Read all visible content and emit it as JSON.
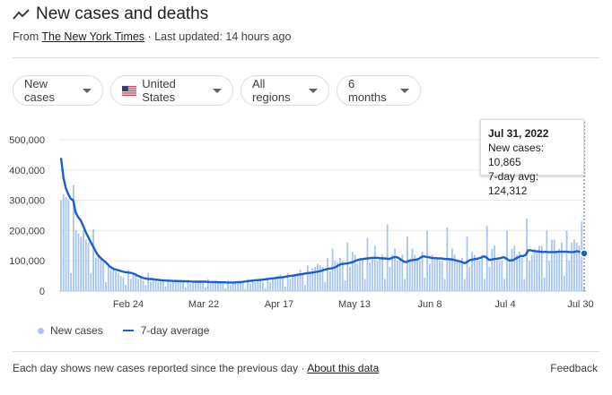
{
  "header": {
    "title": "New cases and deaths",
    "icon": "trending-icon",
    "source_prefix": "From",
    "source_name": "The New York Times",
    "separator": "·",
    "updated": "Last updated: 14 hours ago"
  },
  "filters": {
    "metric": "New cases",
    "country": "United States",
    "region": "All regions",
    "range": "6 months"
  },
  "colors": {
    "bar": "#a7c5f2",
    "line": "#1a5fd0",
    "text": "#3c4043",
    "divider": "#dadce0",
    "flag_red": "#b22234",
    "flag_blue": "#3c3b6e"
  },
  "tooltip": {
    "date": "Jul 31, 2022",
    "new_cases": "New cases: 10,865",
    "avg": "7-day avg: 124,312"
  },
  "legend": {
    "bars": "New cases",
    "line": "7-day average"
  },
  "footer": {
    "note": "Each day shows new cases reported since the previous day",
    "separator": "·",
    "about": "About this data",
    "feedback": "Feedback"
  },
  "chart_data": {
    "type": "bar",
    "title": "",
    "xlabel": "",
    "ylabel": "",
    "ylim": [
      0,
      500000
    ],
    "yticks": [
      "500,000",
      "400,000",
      "300,000",
      "200,000",
      "100,000",
      "0"
    ],
    "xticks": [
      "Feb 24",
      "Mar 22",
      "Apr 17",
      "May 13",
      "Jun 8",
      "Jul 4",
      "Jul 30"
    ],
    "x_range": [
      "Jan 31, 2022",
      "Jul 31, 2022"
    ],
    "grid": true,
    "series": [
      {
        "name": "New cases",
        "kind": "bars",
        "values": [
          300000,
          320000,
          310000,
          300000,
          60000,
          350000,
          200000,
          190000,
          180000,
          200000,
          170000,
          160000,
          60000,
          205000,
          110000,
          120000,
          110000,
          95000,
          30000,
          90000,
          70000,
          80000,
          65000,
          60000,
          50000,
          45000,
          20000,
          70000,
          40000,
          55000,
          60000,
          40000,
          50000,
          35000,
          20000,
          60000,
          30000,
          35000,
          40000,
          30000,
          35000,
          35000,
          15000,
          40000,
          28000,
          35000,
          38000,
          30000,
          35000,
          30000,
          12000,
          38000,
          25000,
          30000,
          32000,
          28000,
          35000,
          30000,
          12000,
          40000,
          25000,
          30000,
          35000,
          28000,
          32000,
          30000,
          10000,
          35000,
          20000,
          25000,
          30000,
          25000,
          28000,
          30000,
          8000,
          40000,
          25000,
          35000,
          30000,
          35000,
          40000,
          30000,
          10000,
          45000,
          30000,
          45000,
          40000,
          50000,
          55000,
          45000,
          15000,
          60000,
          40000,
          50000,
          55000,
          60000,
          70000,
          60000,
          20000,
          85000,
          60000,
          75000,
          80000,
          90000,
          85000,
          80000,
          30000,
          110000,
          65000,
          140000,
          100000,
          95000,
          110000,
          100000,
          35000,
          160000,
          80000,
          130000,
          120000,
          90000,
          100000,
          110000,
          40000,
          175000,
          95000,
          110000,
          150000,
          100000,
          110000,
          120000,
          40000,
          220000,
          80000,
          120000,
          140000,
          100000,
          110000,
          120000,
          40000,
          180000,
          100000,
          140000,
          120000,
          110000,
          100000,
          130000,
          45000,
          200000,
          90000,
          120000,
          110000,
          110000,
          100000,
          100000,
          40000,
          210000,
          110000,
          140000,
          120000,
          100000,
          100000,
          110000,
          40000,
          180000,
          80000,
          130000,
          120000,
          110000,
          100000,
          120000,
          40000,
          215000,
          80000,
          140000,
          150000,
          110000,
          100000,
          100000,
          40000,
          200000,
          100000,
          140000,
          150000,
          120000,
          130000,
          110000,
          40000,
          240000,
          100000,
          120000,
          140000,
          130000,
          150000,
          150000,
          45000,
          200000,
          100000,
          170000,
          170000,
          130000,
          140000,
          160000,
          50000,
          200000,
          100000,
          160000,
          170000,
          160000,
          150000,
          230000,
          10865
        ]
      },
      {
        "name": "7-day average",
        "kind": "line",
        "values": [
          440000,
          375000,
          340000,
          320000,
          305000,
          300000,
          260000,
          245000,
          235000,
          218000,
          198000,
          182000,
          165000,
          150000,
          135000,
          120000,
          112000,
          104000,
          98000,
          90000,
          82000,
          76000,
          72000,
          70000,
          68000,
          65000,
          63000,
          62000,
          61000,
          60000,
          57000,
          53000,
          49000,
          46000,
          43000,
          41000,
          40000,
          40000,
          39000,
          38000,
          37000,
          36000,
          35500,
          35000,
          34500,
          34000,
          33500,
          33500,
          33000,
          33000,
          32500,
          32500,
          32000,
          32000,
          31500,
          31500,
          31000,
          31000,
          31000,
          31000,
          30500,
          30000,
          30000,
          29500,
          29500,
          29000,
          29000,
          29000,
          28500,
          28500,
          28500,
          28500,
          29000,
          29500,
          30000,
          31000,
          32000,
          33000,
          34000,
          35000,
          36000,
          36500,
          37000,
          38000,
          39000,
          40000,
          41000,
          42000,
          43000,
          44000,
          45000,
          46000,
          47000,
          48500,
          50000,
          51000,
          52000,
          53500,
          55000,
          56000,
          57500,
          59000,
          60000,
          61000,
          62000,
          63500,
          65000,
          67000,
          70000,
          72000,
          74000,
          75000,
          77000,
          80000,
          85000,
          89000,
          90000,
          91000,
          92000,
          94000,
          96000,
          100000,
          103000,
          105000,
          106000,
          107000,
          108000,
          109000,
          110000,
          110000,
          110000,
          109000,
          108000,
          108000,
          107000,
          106000,
          110000,
          112000,
          112000,
          108000,
          102000,
          97000,
          96000,
          100000,
          102000,
          103000,
          104000,
          106000,
          112000,
          115000,
          113000,
          112000,
          110000,
          109000,
          109000,
          108000,
          108000,
          107000,
          106000,
          106000,
          105000,
          104000,
          102000,
          100000,
          98000,
          95000,
          92000,
          97000,
          102000,
          104000,
          106000,
          107000,
          109000,
          112000,
          115000,
          110000,
          103000,
          104000,
          106000,
          107000,
          108000,
          110000,
          112000,
          107000,
          102000,
          101000,
          103000,
          108000,
          112000,
          116000,
          116000,
          120000,
          135000,
          135000,
          133000,
          132000,
          131000,
          130000,
          129000,
          130000,
          129000,
          129000,
          129000,
          129000,
          130000,
          130000,
          130000,
          130000,
          130000,
          129000,
          129000,
          129000,
          132000,
          130000,
          126000,
          124312
        ]
      }
    ]
  }
}
